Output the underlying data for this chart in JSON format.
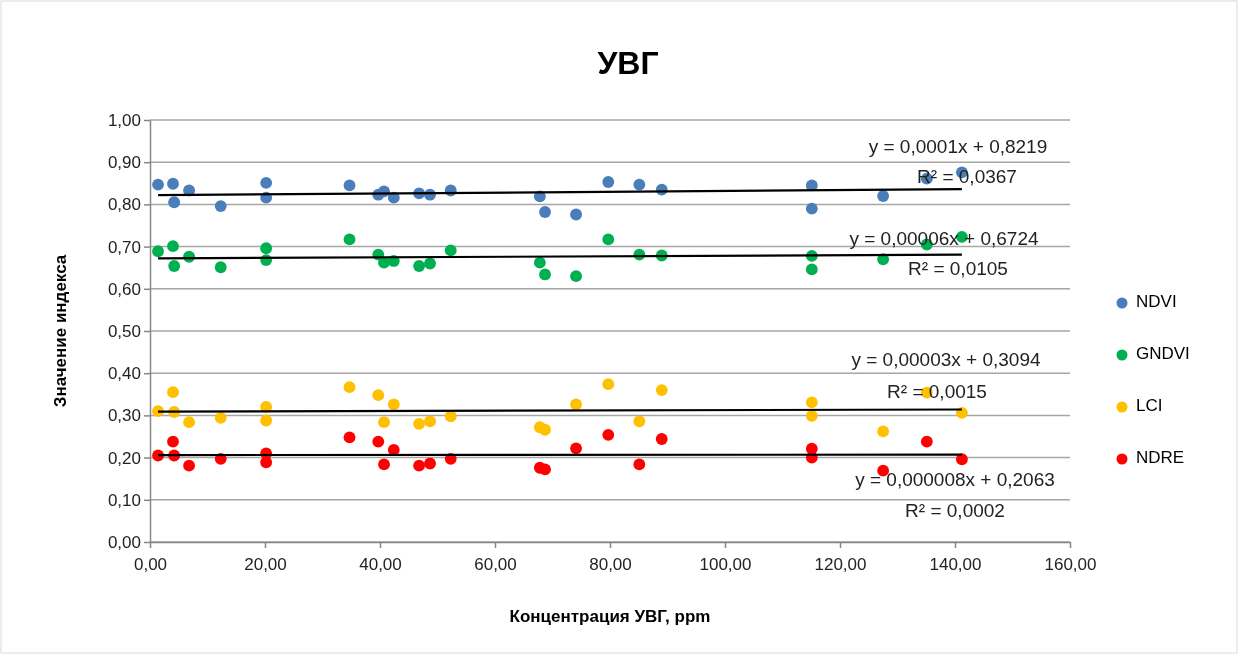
{
  "chart_data": {
    "type": "scatter",
    "title": "УВГ",
    "xlabel": "Концентрация УВГ, ppm",
    "ylabel": "Значение индекса",
    "xlim": [
      0,
      160
    ],
    "xticks": [
      {
        "value": 0,
        "label": "0,00"
      },
      {
        "value": 20,
        "label": "20,00"
      },
      {
        "value": 40,
        "label": "40,00"
      },
      {
        "value": 60,
        "label": "60,00"
      },
      {
        "value": 80,
        "label": "80,00"
      },
      {
        "value": 100,
        "label": "100,00"
      },
      {
        "value": 120,
        "label": "120,00"
      },
      {
        "value": 140,
        "label": "140,00"
      },
      {
        "value": 160,
        "label": "160,00"
      }
    ],
    "ylim": [
      0,
      1
    ],
    "yticks": [
      {
        "value": 0,
        "label": "0,00"
      },
      {
        "value": 0.1,
        "label": "0,10"
      },
      {
        "value": 0.2,
        "label": "0,20"
      },
      {
        "value": 0.3,
        "label": "0,30"
      },
      {
        "value": 0.4,
        "label": "0,40"
      },
      {
        "value": 0.5,
        "label": "0,50"
      },
      {
        "value": 0.6,
        "label": "0,60"
      },
      {
        "value": 0.7,
        "label": "0,70"
      },
      {
        "value": 0.8,
        "label": "0,80"
      },
      {
        "value": 0.9,
        "label": "0,90"
      },
      {
        "value": 1,
        "label": "1,00"
      }
    ],
    "grid": "y",
    "legend": "right",
    "marker": "circle",
    "x": [
      1.4,
      4.0,
      4.2,
      6.8,
      12.3,
      20.2,
      20.2,
      34.7,
      39.7,
      40.7,
      42.4,
      46.8,
      48.7,
      52.3,
      67.8,
      68.7,
      74.1,
      79.7,
      85.1,
      89.0,
      115.1,
      115.1,
      127.5,
      135.1,
      141.2
    ],
    "series": [
      {
        "name": "NDVI",
        "color": "#4a7ebb",
        "values": [
          0.847,
          0.849,
          0.805,
          0.833,
          0.796,
          0.851,
          0.816,
          0.845,
          0.823,
          0.831,
          0.816,
          0.826,
          0.823,
          0.833,
          0.819,
          0.782,
          0.776,
          0.853,
          0.847,
          0.835,
          0.845,
          0.79,
          0.82,
          0.861,
          0.876
        ]
      },
      {
        "name": "GNDVI",
        "color": "#00b050",
        "values": [
          0.689,
          0.701,
          0.654,
          0.676,
          0.651,
          0.696,
          0.668,
          0.717,
          0.681,
          0.662,
          0.666,
          0.654,
          0.66,
          0.691,
          0.662,
          0.634,
          0.63,
          0.717,
          0.681,
          0.679,
          0.678,
          0.646,
          0.67,
          0.705,
          0.723
        ]
      },
      {
        "name": "LCI",
        "color": "#ffc000",
        "values": [
          0.31,
          0.355,
          0.308,
          0.284,
          0.294,
          0.32,
          0.288,
          0.367,
          0.348,
          0.284,
          0.326,
          0.28,
          0.286,
          0.298,
          0.272,
          0.266,
          0.326,
          0.374,
          0.286,
          0.36,
          0.331,
          0.299,
          0.262,
          0.354,
          0.306
        ]
      },
      {
        "name": "NDRE",
        "color": "#ff0000",
        "values": [
          0.205,
          0.238,
          0.205,
          0.181,
          0.197,
          0.21,
          0.189,
          0.248,
          0.238,
          0.184,
          0.218,
          0.181,
          0.186,
          0.197,
          0.176,
          0.172,
          0.222,
          0.254,
          0.184,
          0.244,
          0.221,
          0.2,
          0.169,
          0.238,
          0.196
        ]
      },
      {
        "type": "line",
        "marker": "none",
        "color": "#000000",
        "values": [
          0.822,
          null,
          null,
          null,
          null,
          null,
          null,
          null,
          null,
          null,
          null,
          null,
          null,
          null,
          null,
          null,
          null,
          null,
          null,
          null,
          null,
          null,
          null,
          null,
          0.836
        ]
      },
      {
        "type": "line",
        "marker": "none",
        "color": "#000000",
        "values": [
          0.672,
          null,
          null,
          null,
          null,
          null,
          null,
          null,
          null,
          null,
          null,
          null,
          null,
          null,
          null,
          null,
          null,
          null,
          null,
          null,
          null,
          null,
          null,
          null,
          0.681
        ]
      },
      {
        "type": "line",
        "marker": "none",
        "color": "#000000",
        "values": [
          0.309,
          null,
          null,
          null,
          null,
          null,
          null,
          null,
          null,
          null,
          null,
          null,
          null,
          null,
          null,
          null,
          null,
          null,
          null,
          null,
          null,
          null,
          null,
          null,
          0.314
        ]
      },
      {
        "type": "line",
        "marker": "none",
        "color": "#000000",
        "values": [
          0.206,
          null,
          null,
          null,
          null,
          null,
          null,
          null,
          null,
          null,
          null,
          null,
          null,
          null,
          null,
          null,
          null,
          null,
          null,
          null,
          null,
          null,
          null,
          null,
          0.207
        ]
      }
    ],
    "annotations": [
      "y = 0,0001x + 0,8219",
      "R² = 0,0367",
      "y = 0,00006x + 0,6724",
      "R² = 0,0105",
      "y = 0,00003x + 0,3094",
      "R² = 0,0015",
      "y = 0,000008x + 0,2063",
      "R² = 0,0002"
    ]
  }
}
